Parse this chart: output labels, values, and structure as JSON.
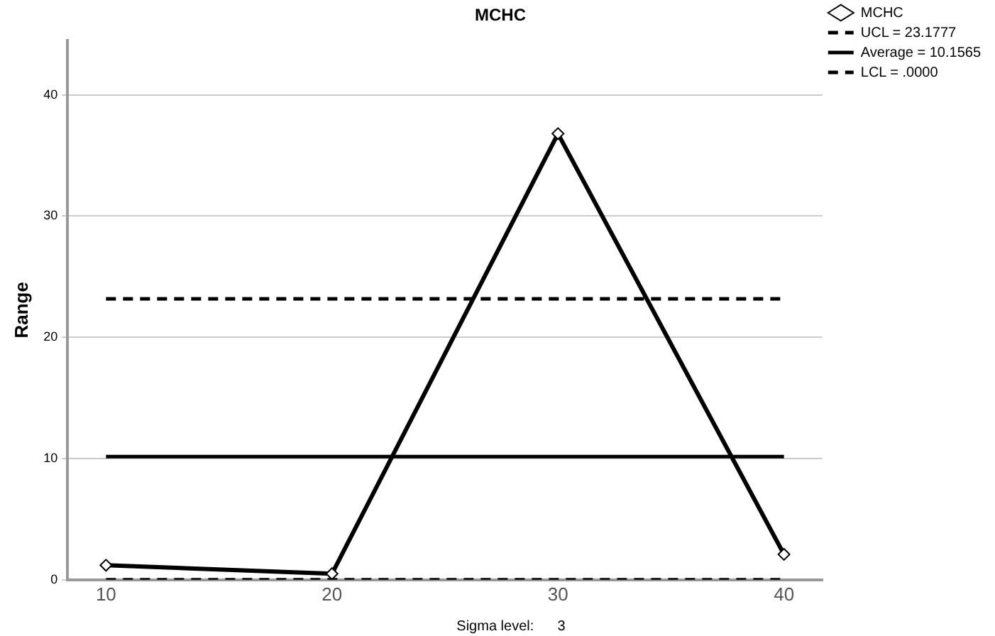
{
  "chart_data": {
    "type": "line",
    "title": "MCHC",
    "ylabel": "Range",
    "x": [
      10,
      20,
      30,
      40
    ],
    "xlim": [
      8.3,
      41.7
    ],
    "xticks": [
      10,
      20,
      30,
      40
    ],
    "series": [
      {
        "name": "MCHC",
        "color": "#000000",
        "values": [
          1.2,
          0.5,
          36.8,
          2.1
        ]
      }
    ],
    "ylim": [
      0,
      44.5
    ],
    "yticks": [
      0,
      10,
      20,
      30,
      40
    ],
    "ref_lines": [
      {
        "axis": "y",
        "value": 23.1777,
        "label": "UCL = 23.1777",
        "color": "#000000",
        "line_style": "dashed"
      },
      {
        "axis": "y",
        "value": 10.1565,
        "label": "Average = 10.1565",
        "color": "#000000",
        "line_style": "solid"
      },
      {
        "axis": "y",
        "value": 0,
        "label": "LCL = .0000",
        "color": "#000000",
        "line_style": "dashed"
      }
    ],
    "annotations": [
      "Sigma level:      3"
    ],
    "grid": "y",
    "legend": "top right",
    "marker": "diamond",
    "line_style": "solid"
  }
}
